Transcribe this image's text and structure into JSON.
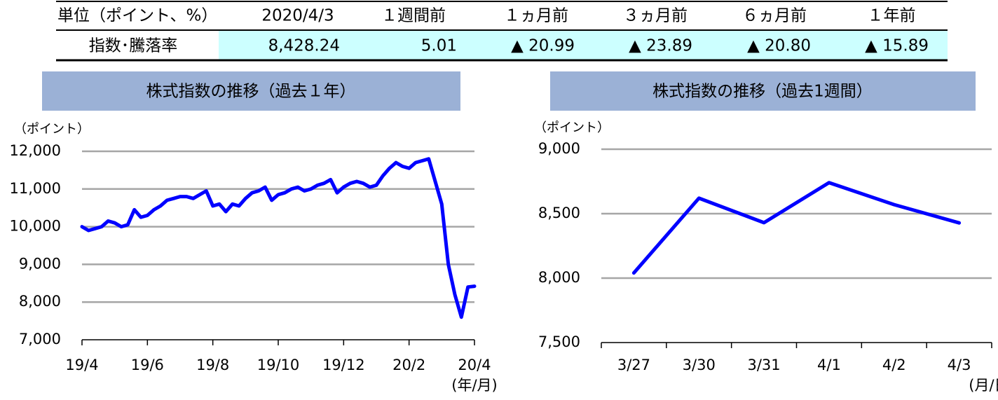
{
  "table": {
    "header": [
      "単位（ポイント、%）",
      "2020/4/3",
      "１週間前",
      "１ヵ月前",
      "３ヵ月前",
      "６ヵ月前",
      "１年前"
    ],
    "rows": [
      [
        "指数･騰落率",
        "8,428.24",
        "5.01",
        "▲ 20.99",
        "▲ 23.89",
        "▲ 20.80",
        "▲ 15.89"
      ]
    ]
  },
  "chart_data": [
    {
      "type": "line",
      "title": "株式指数の推移（過去１年）",
      "y_label": "（ポイント）",
      "x_label": "(年/月)",
      "categories": [
        "19/4",
        null,
        null,
        null,
        null,
        null,
        null,
        null,
        null,
        null,
        "19/6",
        null,
        null,
        null,
        null,
        null,
        null,
        null,
        null,
        null,
        "19/8",
        null,
        null,
        null,
        null,
        null,
        null,
        null,
        null,
        null,
        "19/10",
        null,
        null,
        null,
        null,
        null,
        null,
        null,
        null,
        null,
        "19/12",
        null,
        null,
        null,
        null,
        null,
        null,
        null,
        null,
        null,
        "20/2",
        null,
        null,
        null,
        null,
        null,
        null,
        null,
        null,
        null,
        "20/4"
      ],
      "values": [
        10000,
        9900,
        9950,
        10000,
        10150,
        10100,
        10000,
        10050,
        10450,
        10250,
        10300,
        10450,
        10550,
        10700,
        10750,
        10800,
        10800,
        10750,
        10850,
        10950,
        10550,
        10600,
        10400,
        10600,
        10550,
        10750,
        10900,
        10950,
        11050,
        10700,
        10850,
        10900,
        11000,
        11050,
        10950,
        11000,
        11100,
        11150,
        11250,
        10900,
        11050,
        11150,
        11200,
        11150,
        11050,
        11100,
        11350,
        11550,
        11700,
        11600,
        11550,
        11700,
        11750,
        11800,
        11200,
        10600,
        9000,
        8200,
        7600,
        8400,
        8420
      ],
      "color": "#0000ff",
      "ylim": [
        7000,
        12000
      ],
      "yticks": [
        {
          "value": 7000,
          "label": "7,000"
        },
        {
          "value": 8000,
          "label": "8,000"
        },
        {
          "value": 9000,
          "label": "9,000"
        },
        {
          "value": 10000,
          "label": "10,000"
        },
        {
          "value": 11000,
          "label": "11,000"
        },
        {
          "value": 12000,
          "label": "12,000"
        }
      ],
      "grid": true
    },
    {
      "type": "line",
      "title": "株式指数の推移（過去1週間）",
      "y_label": "（ポイント）",
      "x_label": "(月/日)",
      "categories": [
        "3/27",
        "3/30",
        "3/31",
        "4/1",
        "4/2",
        "4/3"
      ],
      "values": [
        8040,
        8620,
        8430,
        8740,
        8570,
        8428
      ],
      "color": "#0000ff",
      "ylim": [
        7500,
        9000
      ],
      "yticks": [
        {
          "value": 7500,
          "label": "7,500"
        },
        {
          "value": 8000,
          "label": "8,000"
        },
        {
          "value": 8500,
          "label": "8,500"
        },
        {
          "value": 9000,
          "label": "9,000"
        }
      ],
      "grid": true
    }
  ]
}
